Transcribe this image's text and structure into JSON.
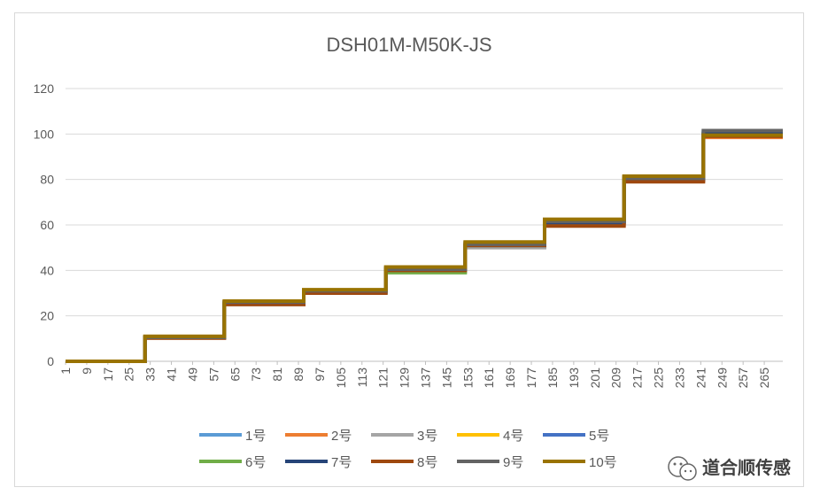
{
  "chart_data": {
    "type": "line",
    "title": "DSH01M-M50K-JS",
    "xlabel": "",
    "ylabel": "",
    "ylim": [
      0,
      120
    ],
    "yticks": [
      0,
      20,
      40,
      60,
      80,
      100,
      120
    ],
    "xlim": [
      1,
      272
    ],
    "xticks": [
      1,
      9,
      17,
      25,
      33,
      41,
      49,
      57,
      65,
      73,
      81,
      89,
      97,
      105,
      113,
      121,
      129,
      137,
      145,
      153,
      161,
      169,
      177,
      185,
      193,
      201,
      209,
      217,
      225,
      233,
      241,
      249,
      257,
      265
    ],
    "grid": true,
    "legend_position": "bottom",
    "step_breaks": [
      31,
      61,
      91,
      122,
      152,
      182,
      212,
      242
    ],
    "series": [
      {
        "name": "1号",
        "color": "#5B9BD5",
        "levels": [
          0,
          10.5,
          26,
          31,
          41,
          52,
          62,
          81,
          101
        ]
      },
      {
        "name": "2号",
        "color": "#ED7D31",
        "levels": [
          0,
          10.2,
          25.5,
          30.5,
          40.5,
          51,
          60.5,
          79.5,
          98.5
        ]
      },
      {
        "name": "3号",
        "color": "#A5A5A5",
        "levels": [
          0,
          10.3,
          25.5,
          30,
          39.5,
          50,
          60,
          80,
          100
        ]
      },
      {
        "name": "4号",
        "color": "#FFC000",
        "levels": [
          0,
          10.6,
          26,
          31,
          41,
          52,
          62,
          81,
          100
        ]
      },
      {
        "name": "5号",
        "color": "#4472C4",
        "levels": [
          0,
          10.5,
          26,
          31,
          41,
          52,
          61.5,
          80.5,
          100.5
        ]
      },
      {
        "name": "6号",
        "color": "#70AD47",
        "levels": [
          0,
          10.4,
          25.5,
          30,
          39,
          51,
          61,
          80.5,
          100
        ]
      },
      {
        "name": "7号",
        "color": "#264478",
        "levels": [
          0,
          10.5,
          25.5,
          30.5,
          40.5,
          51,
          61,
          80,
          100
        ]
      },
      {
        "name": "8号",
        "color": "#9E480E",
        "levels": [
          0,
          10.3,
          25,
          30,
          40,
          51,
          59.5,
          79,
          99
        ]
      },
      {
        "name": "9号",
        "color": "#636363",
        "levels": [
          0,
          10.5,
          26,
          31,
          40.5,
          51.5,
          61.5,
          80.5,
          101.5
        ]
      },
      {
        "name": "10号",
        "color": "#997300",
        "levels": [
          0,
          11,
          26.5,
          31.5,
          41.5,
          52.5,
          62.5,
          81.5,
          99.5
        ]
      }
    ]
  },
  "watermark": {
    "icon": "wechat-icon",
    "text": "道合顺传感"
  }
}
